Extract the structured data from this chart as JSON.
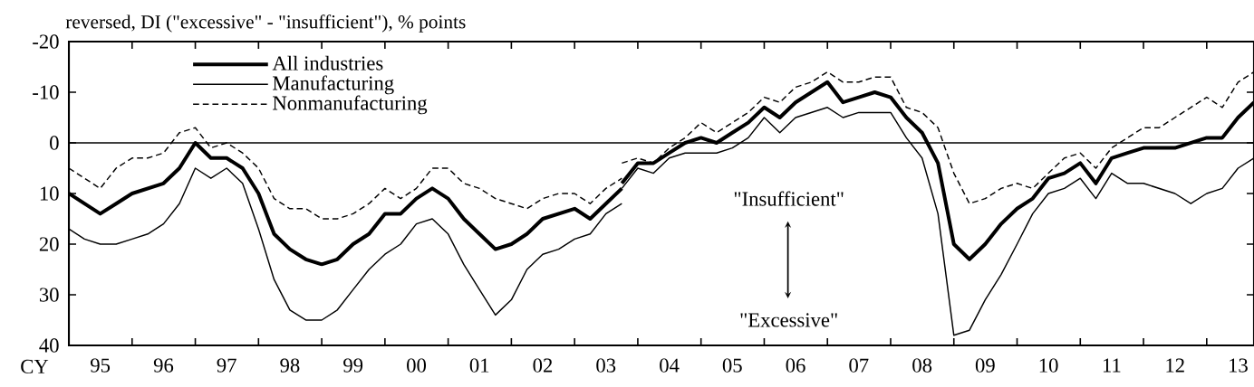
{
  "chart_data": {
    "type": "line",
    "ylabel": "reversed, DI (\"excessive\" - \"insufficient\"), % points",
    "xlabel": "CY",
    "xlim": [
      "1995-01-01",
      "2013-10-01"
    ],
    "xticks": [
      {
        "value": "1996-01-01",
        "label": null
      },
      {
        "value": "1997-01-01",
        "label": null
      },
      {
        "value": "1998-01-01",
        "label": null
      },
      {
        "value": "1999-01-01",
        "label": null
      },
      {
        "value": "2000-01-01",
        "label": null
      },
      {
        "value": "2001-01-01",
        "label": null
      },
      {
        "value": "2002-01-01",
        "label": null
      },
      {
        "value": "2003-01-01",
        "label": null
      },
      {
        "value": "2004-01-01",
        "label": null
      },
      {
        "value": "2005-01-01",
        "label": null
      },
      {
        "value": "2006-01-01",
        "label": null
      },
      {
        "value": "2007-01-01",
        "label": null
      },
      {
        "value": "2008-01-01",
        "label": null
      },
      {
        "value": "2009-01-01",
        "label": null
      },
      {
        "value": "2010-01-01",
        "label": null
      },
      {
        "value": "2011-01-01",
        "label": null
      },
      {
        "value": "2012-01-01",
        "label": null
      },
      {
        "value": "2013-01-01",
        "label": null
      },
      {
        "value": "1995-07-01",
        "label": "95"
      },
      {
        "value": "1996-07-01",
        "label": "96"
      },
      {
        "value": "1997-07-01",
        "label": "97"
      },
      {
        "value": "1998-07-01",
        "label": "98"
      },
      {
        "value": "1999-07-01",
        "label": "99"
      },
      {
        "value": "2000-07-01",
        "label": "00"
      },
      {
        "value": "2001-07-01",
        "label": "01"
      },
      {
        "value": "2002-07-01",
        "label": "02"
      },
      {
        "value": "2003-07-01",
        "label": "03"
      },
      {
        "value": "2004-07-01",
        "label": "04"
      },
      {
        "value": "2005-07-01",
        "label": "05"
      },
      {
        "value": "2006-07-01",
        "label": "06"
      },
      {
        "value": "2007-07-01",
        "label": "07"
      },
      {
        "value": "2008-07-01",
        "label": "08"
      },
      {
        "value": "2009-07-01",
        "label": "09"
      },
      {
        "value": "2010-07-01",
        "label": "10"
      },
      {
        "value": "2011-07-01",
        "label": "11"
      },
      {
        "value": "2012-07-01",
        "label": "12"
      },
      {
        "value": "2013-07-01",
        "label": "13"
      }
    ],
    "ylim": [
      40,
      -20
    ],
    "yticks": [
      -20,
      -10,
      0,
      10,
      20,
      30,
      40
    ],
    "grid": false,
    "legend": "top left",
    "ref_lines": [
      {
        "axis": "y",
        "value": 0,
        "color": "#000000"
      }
    ],
    "annotations": [
      "\"Insufficient\"",
      "\"Excessive\""
    ],
    "series": [
      {
        "name": "All industries",
        "color": "#000000",
        "line_style": "solid",
        "x": [
          "1995-01-01",
          "1995-04-01",
          "1995-07-01",
          "1995-10-01",
          "1996-01-01",
          "1996-04-01",
          "1996-07-01",
          "1996-10-01",
          "1997-01-01",
          "1997-04-01",
          "1997-07-01",
          "1997-10-01",
          "1998-01-01",
          "1998-04-01",
          "1998-07-01",
          "1998-10-01",
          "1999-01-01",
          "1999-04-01",
          "1999-07-01",
          "1999-10-01",
          "2000-01-01",
          "2000-04-01",
          "2000-07-01",
          "2000-10-01",
          "2001-01-01",
          "2001-04-01",
          "2001-07-01",
          "2001-10-01",
          "2002-01-01",
          "2002-04-01",
          "2002-07-01",
          "2002-10-01",
          "2003-01-01",
          "2003-04-01",
          "2003-07-01",
          "2003-10-01"
        ],
        "values": [
          10,
          12,
          14,
          12,
          10,
          9,
          8,
          5,
          0,
          3,
          3,
          5,
          10,
          18,
          21,
          23,
          24,
          23,
          20,
          18,
          14,
          14,
          11,
          9,
          11,
          15,
          18,
          21,
          20,
          18,
          15,
          14,
          13,
          15,
          12,
          9
        ]
      },
      {
        "name": "Manufacturing",
        "color": "#000000",
        "line_style": "solid",
        "x": [
          "1995-01-01",
          "1995-04-01",
          "1995-07-01",
          "1995-10-01",
          "1996-01-01",
          "1996-04-01",
          "1996-07-01",
          "1996-10-01",
          "1997-01-01",
          "1997-04-01",
          "1997-07-01",
          "1997-10-01",
          "1998-01-01",
          "1998-04-01",
          "1998-07-01",
          "1998-10-01",
          "1999-01-01",
          "1999-04-01",
          "1999-07-01",
          "1999-10-01",
          "2000-01-01",
          "2000-04-01",
          "2000-07-01",
          "2000-10-01",
          "2001-01-01",
          "2001-04-01",
          "2001-07-01",
          "2001-10-01",
          "2002-01-01",
          "2002-04-01",
          "2002-07-01",
          "2002-10-01",
          "2003-01-01",
          "2003-04-01",
          "2003-07-01",
          "2003-10-01"
        ],
        "values": [
          17,
          19,
          20,
          20,
          19,
          18,
          16,
          12,
          5,
          7,
          5,
          8,
          17,
          27,
          33,
          35,
          35,
          33,
          29,
          25,
          22,
          20,
          16,
          15,
          18,
          24,
          29,
          34,
          31,
          25,
          22,
          21,
          19,
          18,
          14,
          12
        ]
      },
      {
        "name": "Nonmanufacturing",
        "color": "#000000",
        "line_style": "dashed",
        "x": [
          "1995-01-01",
          "1995-04-01",
          "1995-07-01",
          "1995-10-01",
          "1996-01-01",
          "1996-04-01",
          "1996-07-01",
          "1996-10-01",
          "1997-01-01",
          "1997-04-01",
          "1997-07-01",
          "1997-10-01",
          "1998-01-01",
          "1998-04-01",
          "1998-07-01",
          "1998-10-01",
          "1999-01-01",
          "1999-04-01",
          "1999-07-01",
          "1999-10-01",
          "2000-01-01",
          "2000-04-01",
          "2000-07-01",
          "2000-10-01",
          "2001-01-01",
          "2001-04-01",
          "2001-07-01",
          "2001-10-01",
          "2002-01-01",
          "2002-04-01",
          "2002-07-01",
          "2002-10-01",
          "2003-01-01",
          "2003-04-01",
          "2003-07-01",
          "2003-10-01"
        ],
        "values": [
          5,
          7,
          9,
          5,
          3,
          3,
          2,
          -2,
          -3,
          1,
          0,
          2,
          5,
          11,
          13,
          13,
          15,
          15,
          14,
          12,
          9,
          11,
          9,
          5,
          5,
          8,
          9,
          11,
          12,
          13,
          11,
          10,
          10,
          12,
          9,
          7
        ]
      },
      {
        "color": "#000000",
        "line_style": "solid",
        "x": [
          "2003-10-01",
          "2004-01-01",
          "2004-04-01",
          "2004-07-01",
          "2004-10-01",
          "2005-01-01",
          "2005-04-01",
          "2005-07-01",
          "2005-10-01",
          "2006-01-01",
          "2006-04-01",
          "2006-07-01",
          "2006-10-01",
          "2007-01-01",
          "2007-04-01",
          "2007-07-01",
          "2007-10-01",
          "2008-01-01",
          "2008-04-01",
          "2008-07-01",
          "2008-10-01",
          "2009-01-01",
          "2009-04-01",
          "2009-07-01",
          "2009-10-01",
          "2010-01-01",
          "2010-04-01",
          "2010-07-01",
          "2010-10-01",
          "2011-01-01",
          "2011-04-01",
          "2011-07-01",
          "2011-10-01",
          "2012-01-01",
          "2012-04-01",
          "2012-07-01",
          "2012-10-01",
          "2013-01-01",
          "2013-04-01",
          "2013-07-01",
          "2013-10-01"
        ],
        "values": [
          8,
          4,
          4,
          2,
          0,
          -1,
          0,
          -2,
          -4,
          -7,
          -5,
          -8,
          -10,
          -12,
          -8,
          -9,
          -10,
          -9,
          -5,
          -2,
          4,
          20,
          23,
          20,
          16,
          13,
          11,
          7,
          6,
          4,
          8,
          3,
          2,
          1,
          1,
          1,
          0,
          -1,
          -1,
          -5,
          -8
        ]
      },
      {
        "color": "#000000",
        "line_style": "solid",
        "x": [
          "2003-10-01",
          "2004-01-01",
          "2004-04-01",
          "2004-07-01",
          "2004-10-01",
          "2005-01-01",
          "2005-04-01",
          "2005-07-01",
          "2005-10-01",
          "2006-01-01",
          "2006-04-01",
          "2006-07-01",
          "2006-10-01",
          "2007-01-01",
          "2007-04-01",
          "2007-07-01",
          "2007-10-01",
          "2008-01-01",
          "2008-04-01",
          "2008-07-01",
          "2008-10-01",
          "2009-01-01",
          "2009-04-01",
          "2009-07-01",
          "2009-10-01",
          "2010-01-01",
          "2010-04-01",
          "2010-07-01",
          "2010-10-01",
          "2011-01-01",
          "2011-04-01",
          "2011-07-01",
          "2011-10-01",
          "2012-01-01",
          "2012-04-01",
          "2012-07-01",
          "2012-10-01",
          "2013-01-01",
          "2013-04-01",
          "2013-07-01",
          "2013-10-01"
        ],
        "values": [
          9,
          5,
          6,
          3,
          2,
          2,
          2,
          1,
          -1,
          -5,
          -2,
          -5,
          -6,
          -7,
          -5,
          -6,
          -6,
          -6,
          -1,
          3,
          14,
          38,
          37,
          31,
          26,
          20,
          14,
          10,
          9,
          7,
          11,
          6,
          8,
          8,
          9,
          10,
          12,
          10,
          9,
          5,
          3
        ]
      },
      {
        "color": "#000000",
        "line_style": "dashed",
        "x": [
          "2003-10-01",
          "2004-01-01",
          "2004-04-01",
          "2004-07-01",
          "2004-10-01",
          "2005-01-01",
          "2005-04-01",
          "2005-07-01",
          "2005-10-01",
          "2006-01-01",
          "2006-04-01",
          "2006-07-01",
          "2006-10-01",
          "2007-01-01",
          "2007-04-01",
          "2007-07-01",
          "2007-10-01",
          "2008-01-01",
          "2008-04-01",
          "2008-07-01",
          "2008-10-01",
          "2009-01-01",
          "2009-04-01",
          "2009-07-01",
          "2009-10-01",
          "2010-01-01",
          "2010-04-01",
          "2010-07-01",
          "2010-10-01",
          "2011-01-01",
          "2011-04-01",
          "2011-07-01",
          "2011-10-01",
          "2012-01-01",
          "2012-04-01",
          "2012-07-01",
          "2012-10-01",
          "2013-01-01",
          "2013-04-01",
          "2013-07-01",
          "2013-10-01"
        ],
        "values": [
          4,
          3,
          4,
          1,
          -1,
          -4,
          -2,
          -4,
          -6,
          -9,
          -8,
          -11,
          -12,
          -14,
          -12,
          -12,
          -13,
          -13,
          -7,
          -6,
          -3,
          6,
          12,
          11,
          9,
          8,
          9,
          6,
          3,
          2,
          5,
          1,
          -1,
          -3,
          -3,
          -5,
          -7,
          -9,
          -7,
          -12,
          -14
        ]
      }
    ]
  }
}
